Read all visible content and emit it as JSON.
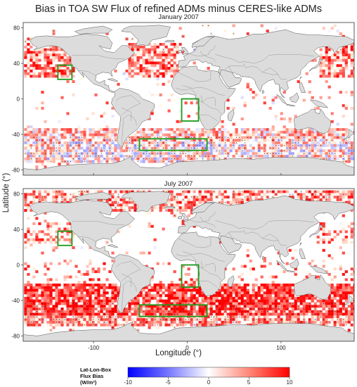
{
  "title": "Bias in TOA SW Flux of refined ADMs minus CERES-like ADMs",
  "panels": [
    {
      "subtitle": "January 2007"
    },
    {
      "subtitle": "July 2007"
    }
  ],
  "axes": {
    "ylabel": "Latitude (°)",
    "xlabel": "Longitude (°)",
    "y_ticks": [
      "80",
      "40",
      "0",
      "-40",
      "-80"
    ],
    "x_ticks": [
      "-100",
      "0",
      "100"
    ]
  },
  "colorbar": {
    "title_line1": "Lat-Lon-Box",
    "title_line2": "Flux Bias",
    "title_line3": "(W/m²)",
    "labels": [
      "-10",
      "-5",
      "0",
      "5",
      "10"
    ],
    "color_min": "#0000ff",
    "color_mid": "#ffffff",
    "color_max": "#ff0000"
  },
  "colors": {
    "land": "#dcdcdc",
    "coast": "#555555",
    "box": "#1a9a1a"
  }
}
